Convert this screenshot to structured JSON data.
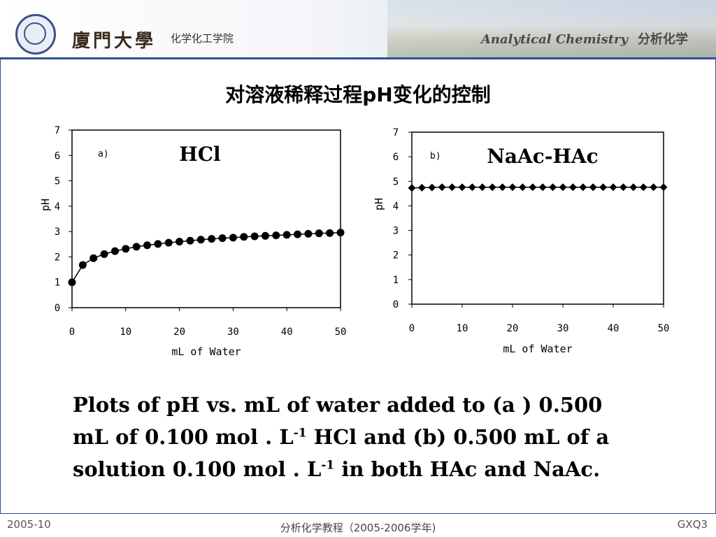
{
  "header": {
    "university": "廈門大學",
    "department": "化学化工学院",
    "course_en": "Analytical Chemistry",
    "course_cn": "分析化学",
    "seal_icon": "university-seal-icon"
  },
  "slide": {
    "title": "对溶液稀释过程pH变化的控制",
    "caption": {
      "line1": "Plots of pH vs. mL of water added to (a ) 0.500",
      "line2a": "mL of 0.100 mol . L",
      "line2sup": "-1",
      "line2b": " HCl and (b) 0.500 mL of a",
      "line3a": "solution 0.100 mol . L",
      "line3sup": "-1",
      "line3b": " in both HAc and NaAc."
    }
  },
  "footer": {
    "date": "2005-10",
    "center": "分析化学教程（2005-2006学年)",
    "code": "GXQ3"
  },
  "chart_data": [
    {
      "type": "line",
      "panel": "a)",
      "title": "HCl",
      "xlabel": "mL of Water",
      "ylabel": "pH",
      "xlim": [
        0,
        50
      ],
      "ylim": [
        0,
        7
      ],
      "xticks": [
        "0",
        "10",
        "20",
        "30",
        "40",
        "50"
      ],
      "yticks": [
        "0",
        "1",
        "2",
        "3",
        "4",
        "5",
        "6",
        "7"
      ],
      "marker": "circle",
      "x": [
        0,
        2,
        4,
        6,
        8,
        10,
        12,
        14,
        16,
        18,
        20,
        22,
        24,
        26,
        28,
        30,
        32,
        34,
        36,
        38,
        40,
        42,
        44,
        46,
        48,
        50
      ],
      "y": [
        1.0,
        1.68,
        1.95,
        2.11,
        2.23,
        2.32,
        2.4,
        2.46,
        2.51,
        2.56,
        2.6,
        2.64,
        2.68,
        2.71,
        2.74,
        2.76,
        2.79,
        2.81,
        2.83,
        2.85,
        2.87,
        2.89,
        2.91,
        2.93,
        2.94,
        2.96
      ]
    },
    {
      "type": "line",
      "panel": "b)",
      "title": "NaAc-HAc",
      "xlabel": "mL of Water",
      "ylabel": "pH",
      "xlim": [
        0,
        50
      ],
      "ylim": [
        0,
        7
      ],
      "xticks": [
        "0",
        "10",
        "20",
        "30",
        "40",
        "50"
      ],
      "yticks": [
        "0",
        "1",
        "2",
        "3",
        "4",
        "5",
        "6",
        "7"
      ],
      "marker": "diamond",
      "x": [
        0,
        2,
        4,
        6,
        8,
        10,
        12,
        14,
        16,
        18,
        20,
        22,
        24,
        26,
        28,
        30,
        32,
        34,
        36,
        38,
        40,
        42,
        44,
        46,
        48,
        50
      ],
      "y": [
        4.73,
        4.74,
        4.75,
        4.76,
        4.76,
        4.76,
        4.76,
        4.76,
        4.76,
        4.76,
        4.76,
        4.76,
        4.76,
        4.76,
        4.76,
        4.76,
        4.76,
        4.76,
        4.76,
        4.76,
        4.76,
        4.76,
        4.76,
        4.76,
        4.76,
        4.76
      ]
    }
  ]
}
